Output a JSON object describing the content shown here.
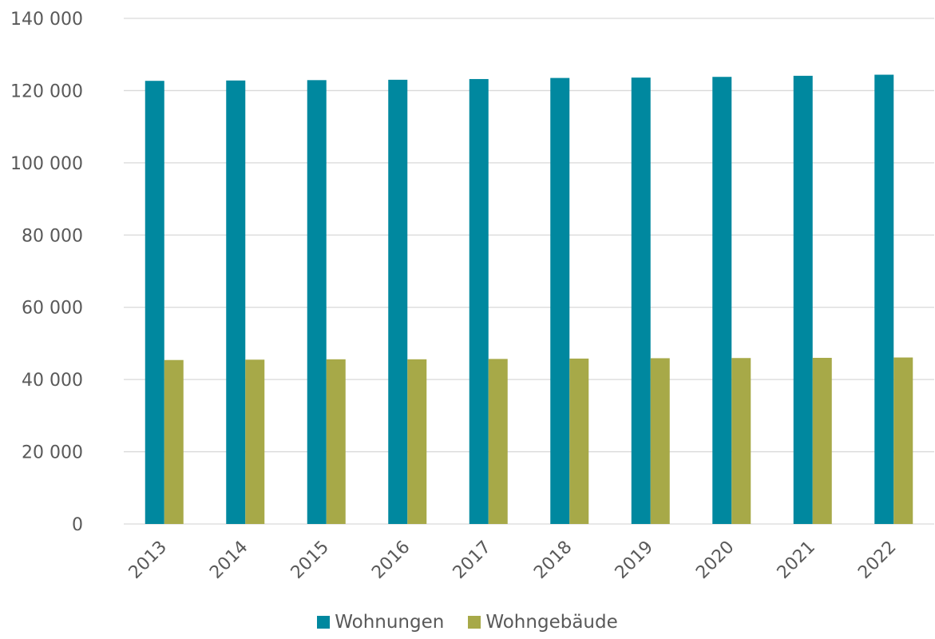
{
  "chart_data": {
    "type": "bar",
    "categories": [
      "2013",
      "2014",
      "2015",
      "2016",
      "2017",
      "2018",
      "2019",
      "2020",
      "2021",
      "2022"
    ],
    "series": [
      {
        "name": "Wohnungen",
        "color": "#00889f",
        "values": [
          122700,
          122800,
          122900,
          123000,
          123200,
          123500,
          123600,
          123800,
          124100,
          124400
        ]
      },
      {
        "name": "Wohngebäude",
        "color": "#a7a948",
        "values": [
          45400,
          45500,
          45600,
          45600,
          45700,
          45800,
          45900,
          45950,
          46000,
          46100
        ]
      }
    ],
    "ylim": [
      0,
      140000
    ],
    "yticks": [
      0,
      20000,
      40000,
      60000,
      80000,
      100000,
      120000,
      140000
    ],
    "ytick_labels": [
      "0",
      "20 000",
      "40 000",
      "60 000",
      "80 000",
      "100 000",
      "120 000",
      "140 000"
    ],
    "grid": true,
    "legend_position": "bottom",
    "title": "",
    "xlabel": "",
    "ylabel": ""
  }
}
